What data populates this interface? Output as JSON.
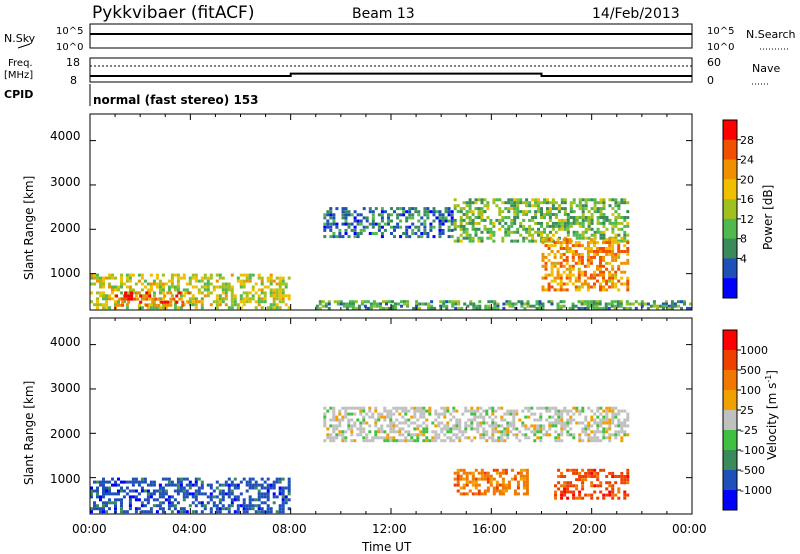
{
  "header": {
    "title": "Pykkvibaer (fitACF)",
    "beam": "Beam 13",
    "date": "14/Feb/2013"
  },
  "nsky_panel": {
    "left_label": "N.Sky",
    "left_ticks": [
      "10^5",
      "10^0"
    ],
    "right_ticks": [
      "10^5",
      "10^0"
    ],
    "right_label": "N.Search"
  },
  "freq_panel": {
    "left_label_1": "Freq.",
    "left_label_2": "[MHz]",
    "left_ticks": [
      "18",
      "8"
    ],
    "right_ticks": [
      "60",
      "0"
    ],
    "right_label": "Nave"
  },
  "cpid": {
    "label": "CPID",
    "text": "normal (fast stereo) 153"
  },
  "x_axis": {
    "ticks": [
      "00:00",
      "04:00",
      "08:00",
      "12:00",
      "16:00",
      "20:00",
      "00:00"
    ],
    "label": "Time UT"
  },
  "power_panel": {
    "ylabel": "Slant Range [km]",
    "yticks": [
      "4000",
      "3000",
      "2000",
      "1000"
    ],
    "colorbar_label": "Power [dB]",
    "colorbar_ticks": [
      "28",
      "24",
      "20",
      "16",
      "12",
      "8",
      "4"
    ],
    "colors": [
      "#0000ff",
      "#1f4fb8",
      "#3a8a5a",
      "#4fb84f",
      "#a0c020",
      "#f0c000",
      "#f09000",
      "#f05000",
      "#ff0000"
    ]
  },
  "velocity_panel": {
    "ylabel": "Slant Range [km]",
    "yticks": [
      "4000",
      "3000",
      "2000",
      "1000"
    ],
    "colorbar_label": "Velocity [m s",
    "colorbar_label_sup": "-1",
    "colorbar_label_end": "]",
    "colorbar_ticks": [
      "1000",
      "500",
      "100",
      "25",
      "-25",
      "-100",
      "-500",
      "-1000"
    ],
    "colors": [
      "#0000ff",
      "#1f4fb8",
      "#3a8a5a",
      "#40c040",
      "#c0c0c0",
      "#f0a000",
      "#f07800",
      "#f04000",
      "#ff0000"
    ]
  },
  "chart_data": [
    {
      "type": "heatmap",
      "title": "Power",
      "xlabel": "Time UT",
      "ylabel": "Slant Range [km]",
      "xlim": [
        "00:00",
        "24:00"
      ],
      "ylim": [
        180,
        4600
      ],
      "colorbar": {
        "label": "Power [dB]",
        "range": [
          0,
          30
        ]
      },
      "regions": [
        {
          "t_start": 0.0,
          "t_end": 8.0,
          "range_start": 200,
          "range_end": 1000,
          "value_db": 16
        },
        {
          "t_start": 1.0,
          "t_end": 4.0,
          "range_start": 250,
          "range_end": 600,
          "value_db": 26
        },
        {
          "t_start": 9.3,
          "t_end": 14.5,
          "range_start": 1800,
          "range_end": 2500,
          "value_db": 6
        },
        {
          "t_start": 14.5,
          "t_end": 21.5,
          "range_start": 1700,
          "range_end": 2700,
          "value_db": 12
        },
        {
          "t_start": 18.0,
          "t_end": 21.5,
          "range_start": 600,
          "range_end": 1800,
          "value_db": 22
        },
        {
          "t_start": 9.0,
          "t_end": 24.0,
          "range_start": 200,
          "range_end": 400,
          "value_db": 10
        }
      ]
    },
    {
      "type": "heatmap",
      "title": "Velocity",
      "xlabel": "Time UT",
      "ylabel": "Slant Range [km]",
      "xlim": [
        "00:00",
        "24:00"
      ],
      "ylim": [
        180,
        4600
      ],
      "colorbar": {
        "label": "Velocity [m s-1]",
        "range": [
          -1000,
          1000
        ]
      },
      "regions": [
        {
          "t_start": 0.0,
          "t_end": 8.0,
          "range_start": 200,
          "range_end": 1000,
          "value_ms": -300
        },
        {
          "t_start": 9.3,
          "t_end": 21.5,
          "range_start": 1800,
          "range_end": 2600,
          "value_ms": 0
        },
        {
          "t_start": 14.5,
          "t_end": 17.5,
          "range_start": 600,
          "range_end": 1200,
          "value_ms": 150
        },
        {
          "t_start": 18.5,
          "t_end": 21.5,
          "range_start": 500,
          "range_end": 1200,
          "value_ms": 400
        }
      ]
    },
    {
      "type": "line",
      "title": "N.Sky / N.Search",
      "series": [],
      "note_values": {
        "level_fraction": 0.25
      }
    },
    {
      "type": "line",
      "title": "Freq / Nave",
      "x": [
        "00:00",
        "08:00",
        "08:00",
        "18:00",
        "18:00",
        "24:00"
      ],
      "y": [
        10.5,
        10.5,
        11.5,
        11.5,
        10.5,
        10.5
      ],
      "ylim": [
        8,
        18
      ]
    }
  ]
}
